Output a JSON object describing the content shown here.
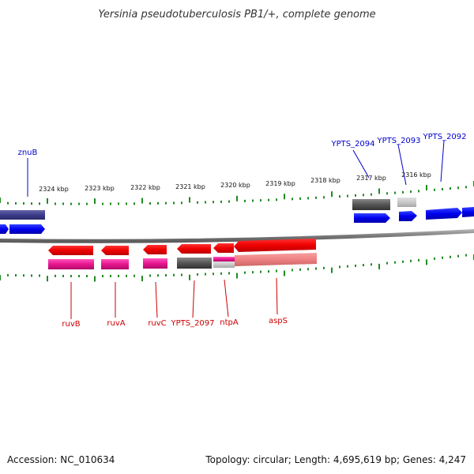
{
  "title": "Yersinia pseudotuberculosis PB1/+, complete genome",
  "footer": {
    "accession": "Accession: NC_010634",
    "summary": "Topology: circular; Length: 4,695,619 bp; Genes: 4,247"
  },
  "colors": {
    "forward_gene": "#0000ee",
    "forward_label": "#0000cc",
    "reverse_gene": "#ee0000",
    "reverse_label": "#cc0000",
    "rna_gene": "#e8158f",
    "pseudogene": "#555555",
    "tick": "#228b22",
    "backbone": "#808080"
  },
  "ruler": {
    "ticks": [
      {
        "label": "2324 kbp"
      },
      {
        "label": "2323 kbp"
      },
      {
        "label": "2322 kbp"
      },
      {
        "label": "2321 kbp"
      },
      {
        "label": "2320 kbp"
      },
      {
        "label": "2319 kbp"
      },
      {
        "label": "2318 kbp"
      },
      {
        "label": "2317 kbp"
      },
      {
        "label": "2316 kbp"
      }
    ]
  },
  "genes": {
    "forward": [
      {
        "name": "znuB"
      },
      {
        "name": "YPTS_2094"
      },
      {
        "name": "YPTS_2093"
      },
      {
        "name": "YPTS_2092"
      }
    ],
    "reverse": [
      {
        "name": "ruvB"
      },
      {
        "name": "ruvA"
      },
      {
        "name": "ruvC"
      },
      {
        "name": "YPTS_2097"
      },
      {
        "name": "ntpA"
      },
      {
        "name": "aspS"
      }
    ]
  }
}
